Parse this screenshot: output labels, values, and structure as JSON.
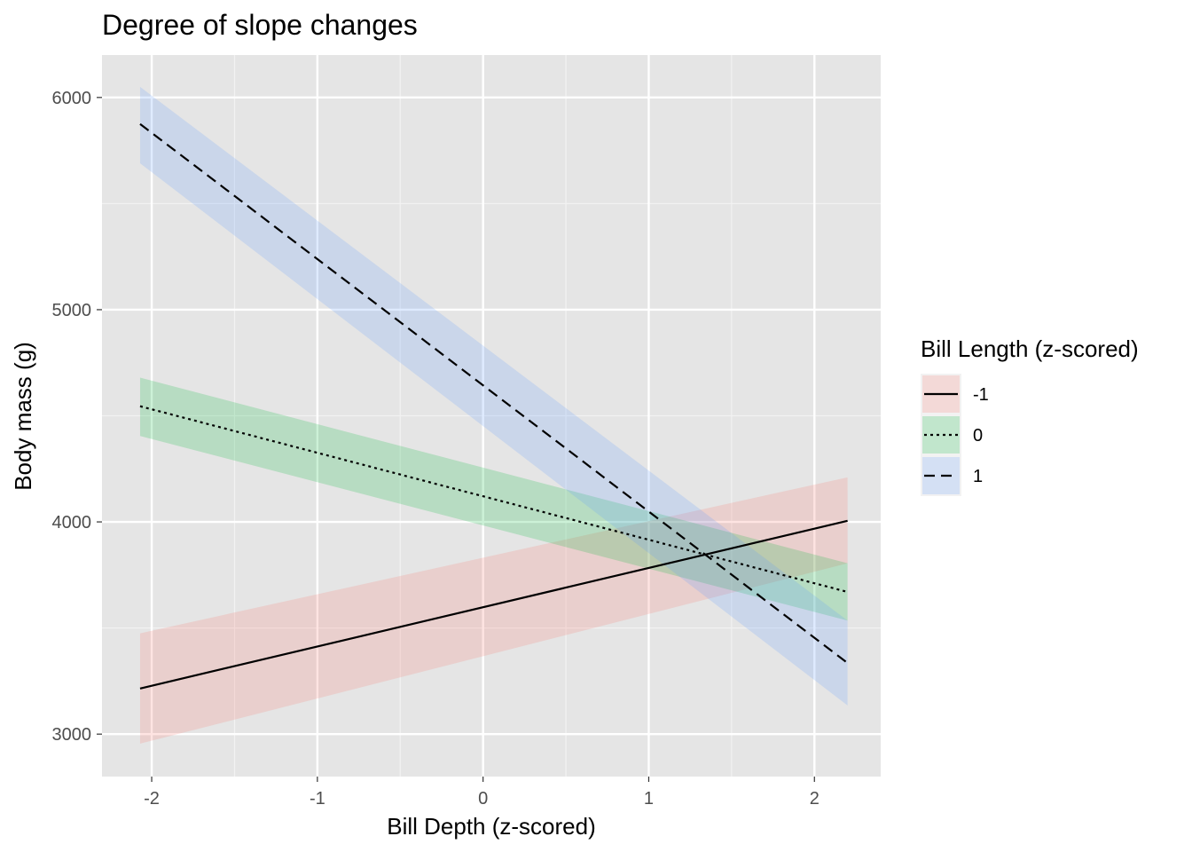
{
  "chart_data": {
    "type": "line",
    "title": "Degree of slope changes",
    "xlabel": "Bill Depth (z-scored)",
    "ylabel": "Body mass (g)",
    "xlim": [
      -2.3,
      2.4
    ],
    "ylim": [
      2800,
      6200
    ],
    "x_ticks": [
      -2,
      -1,
      0,
      1,
      2
    ],
    "x_tick_labels": [
      "-2",
      "-1",
      "0",
      "1",
      "2"
    ],
    "y_ticks": [
      3000,
      4000,
      5000,
      6000
    ],
    "y_tick_labels": [
      "3000",
      "4000",
      "5000",
      "6000"
    ],
    "grid": true,
    "legend": {
      "title": "Bill Length (z-scored)",
      "position": "right"
    },
    "x": [
      -2.07,
      2.2
    ],
    "series": [
      {
        "name": "-1",
        "line": [
          3215,
          4005
        ],
        "ci_lower": [
          2955,
          3805
        ],
        "ci_upper": [
          3475,
          4210
        ],
        "fill": "#f8766d",
        "linestyle": "solid"
      },
      {
        "name": "0",
        "line": [
          4545,
          3670
        ],
        "ci_lower": [
          4405,
          3535
        ],
        "ci_upper": [
          4680,
          3805
        ],
        "fill": "#00ba38",
        "linestyle": "dotted"
      },
      {
        "name": "1",
        "line": [
          5875,
          3335
        ],
        "ci_lower": [
          5690,
          3135
        ],
        "ci_upper": [
          6050,
          3535
        ],
        "fill": "#619cff",
        "linestyle": "dashed"
      }
    ]
  }
}
